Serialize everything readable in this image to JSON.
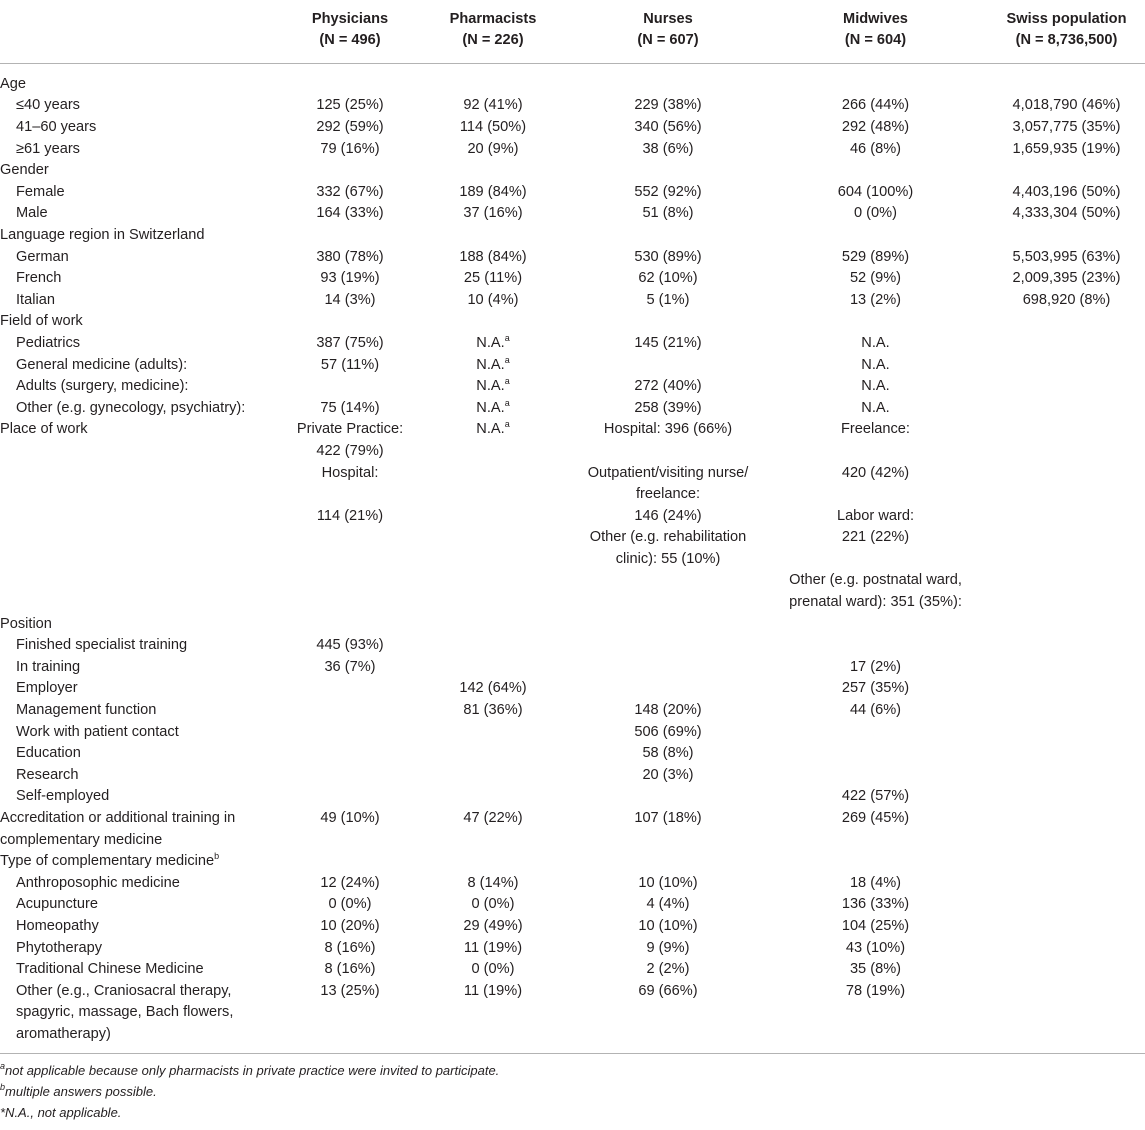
{
  "columns": [
    {
      "name": "Physicians",
      "n": "(N = 496)"
    },
    {
      "name": "Pharmacists",
      "n": "(N = 226)"
    },
    {
      "name": "Nurses",
      "n": "(N = 607)"
    },
    {
      "name": "Midwives",
      "n": "(N = 604)"
    },
    {
      "name": "Swiss population",
      "n": "(N = 8,736,500)"
    }
  ],
  "rows": [
    {
      "type": "group",
      "label": [
        "Age"
      ],
      "cells": [
        [],
        [],
        [],
        [],
        []
      ]
    },
    {
      "type": "item",
      "label": [
        "≤40 years"
      ],
      "cells": [
        [
          "125 (25%)"
        ],
        [
          "92 (41%)"
        ],
        [
          "229 (38%)"
        ],
        [
          "266 (44%)"
        ],
        [
          "4,018,790 (46%)"
        ]
      ]
    },
    {
      "type": "item",
      "label": [
        "41–60 years"
      ],
      "cells": [
        [
          "292 (59%)"
        ],
        [
          "114 (50%)"
        ],
        [
          "340 (56%)"
        ],
        [
          "292 (48%)"
        ],
        [
          "3,057,775 (35%)"
        ]
      ]
    },
    {
      "type": "item",
      "label": [
        "≥61 years"
      ],
      "cells": [
        [
          "79 (16%)"
        ],
        [
          "20 (9%)"
        ],
        [
          "38 (6%)"
        ],
        [
          "46 (8%)"
        ],
        [
          "1,659,935 (19%)"
        ]
      ]
    },
    {
      "type": "group",
      "label": [
        "Gender"
      ],
      "cells": [
        [],
        [],
        [],
        [],
        []
      ]
    },
    {
      "type": "item",
      "label": [
        "Female"
      ],
      "cells": [
        [
          "332 (67%)"
        ],
        [
          "189 (84%)"
        ],
        [
          "552 (92%)"
        ],
        [
          "604 (100%)"
        ],
        [
          "4,403,196 (50%)"
        ]
      ]
    },
    {
      "type": "item",
      "label": [
        "Male"
      ],
      "cells": [
        [
          "164 (33%)"
        ],
        [
          "37 (16%)"
        ],
        [
          "51 (8%)"
        ],
        [
          "0 (0%)"
        ],
        [
          "4,333,304 (50%)"
        ]
      ]
    },
    {
      "type": "group",
      "label": [
        "Language region in Switzerland"
      ],
      "cells": [
        [],
        [],
        [],
        [],
        []
      ]
    },
    {
      "type": "item",
      "label": [
        "German"
      ],
      "cells": [
        [
          "380 (78%)"
        ],
        [
          "188 (84%)"
        ],
        [
          "530 (89%)"
        ],
        [
          "529 (89%)"
        ],
        [
          "5,503,995 (63%)"
        ]
      ]
    },
    {
      "type": "item",
      "label": [
        "French"
      ],
      "cells": [
        [
          "93 (19%)"
        ],
        [
          "25 (11%)"
        ],
        [
          "62 (10%)"
        ],
        [
          "52 (9%)"
        ],
        [
          "2,009,395 (23%)"
        ]
      ]
    },
    {
      "type": "item",
      "label": [
        "Italian"
      ],
      "cells": [
        [
          "14 (3%)"
        ],
        [
          "10 (4%)"
        ],
        [
          "5 (1%)"
        ],
        [
          "13 (2%)"
        ],
        [
          "698,920 (8%)"
        ]
      ]
    },
    {
      "type": "group",
      "label": [
        "Field of work"
      ],
      "cells": [
        [],
        [],
        [],
        [],
        []
      ]
    },
    {
      "type": "item",
      "label": [
        "Pediatrics"
      ],
      "cells": [
        [
          "387 (75%)"
        ],
        [
          "N.A.|a"
        ],
        [
          "145 (21%)"
        ],
        [
          "N.A."
        ],
        []
      ]
    },
    {
      "type": "item",
      "label": [
        "General medicine (adults):"
      ],
      "cells": [
        [
          "57 (11%)"
        ],
        [
          "N.A.|a"
        ],
        [],
        [
          "N.A."
        ],
        []
      ]
    },
    {
      "type": "item",
      "label": [
        "Adults (surgery, medicine):"
      ],
      "cells": [
        [],
        [
          "N.A.|a"
        ],
        [
          "272 (40%)"
        ],
        [
          "N.A."
        ],
        []
      ]
    },
    {
      "type": "item",
      "label": [
        "Other (e.g. gynecology, psychiatry):"
      ],
      "cells": [
        [
          "75 (14%)"
        ],
        [
          "N.A.|a"
        ],
        [
          "258 (39%)"
        ],
        [
          "N.A."
        ],
        []
      ]
    },
    {
      "type": "group",
      "label": [
        "Place of work"
      ],
      "cells": [
        [
          "Private Practice:",
          "422 (79%)",
          "Hospital:",
          "",
          "114 (21%)"
        ],
        [
          "N.A.|a"
        ],
        [
          "Hospital: 396 (66%)",
          "",
          "Outpatient/visiting nurse/",
          "freelance:",
          "146 (24%)",
          "Other (e.g. rehabilitation",
          "clinic): 55 (10%)"
        ],
        [
          "Freelance:",
          "",
          "420 (42%)",
          "",
          "Labor ward:",
          "221 (22%)",
          "",
          "Other (e.g. postnatal ward,",
          "prenatal ward): 351 (35%):"
        ],
        []
      ]
    },
    {
      "type": "group",
      "label": [
        "Position"
      ],
      "cells": [
        [],
        [],
        [],
        [],
        []
      ]
    },
    {
      "type": "item",
      "label": [
        "Finished specialist training"
      ],
      "cells": [
        [
          "445 (93%)"
        ],
        [],
        [],
        [],
        []
      ]
    },
    {
      "type": "item",
      "label": [
        "In training"
      ],
      "cells": [
        [
          "36 (7%)"
        ],
        [],
        [],
        [
          "17 (2%)"
        ],
        []
      ]
    },
    {
      "type": "item",
      "label": [
        "Employer"
      ],
      "cells": [
        [],
        [
          "142 (64%)"
        ],
        [],
        [
          "257 (35%)"
        ],
        []
      ]
    },
    {
      "type": "item",
      "label": [
        "Management function"
      ],
      "cells": [
        [],
        [
          "81 (36%)"
        ],
        [
          "148 (20%)"
        ],
        [
          "44 (6%)"
        ],
        []
      ]
    },
    {
      "type": "item",
      "label": [
        "Work with patient contact"
      ],
      "cells": [
        [],
        [],
        [
          "506 (69%)"
        ],
        [],
        []
      ]
    },
    {
      "type": "item",
      "label": [
        "Education"
      ],
      "cells": [
        [],
        [],
        [
          "58 (8%)"
        ],
        [],
        []
      ]
    },
    {
      "type": "item",
      "label": [
        "Research"
      ],
      "cells": [
        [],
        [],
        [
          "20 (3%)"
        ],
        [],
        []
      ]
    },
    {
      "type": "item",
      "label": [
        "Self-employed"
      ],
      "cells": [
        [],
        [],
        [],
        [
          "422 (57%)"
        ],
        []
      ]
    },
    {
      "type": "group",
      "label": [
        "Accreditation or additional training in",
        "complementary medicine"
      ],
      "cells": [
        [
          "49 (10%)"
        ],
        [
          "47 (22%)"
        ],
        [
          "107 (18%)"
        ],
        [
          "269 (45%)"
        ],
        []
      ]
    },
    {
      "type": "group",
      "label": [
        "Type of complementary medicine|b"
      ],
      "cells": [
        [],
        [],
        [],
        [],
        []
      ]
    },
    {
      "type": "item",
      "label": [
        "Anthroposophic medicine"
      ],
      "cells": [
        [
          "12 (24%)"
        ],
        [
          "8 (14%)"
        ],
        [
          "10 (10%)"
        ],
        [
          "18 (4%)"
        ],
        []
      ]
    },
    {
      "type": "item",
      "label": [
        "Acupuncture"
      ],
      "cells": [
        [
          "0 (0%)"
        ],
        [
          "0 (0%)"
        ],
        [
          "4 (4%)"
        ],
        [
          "136 (33%)"
        ],
        []
      ]
    },
    {
      "type": "item",
      "label": [
        "Homeopathy"
      ],
      "cells": [
        [
          "10 (20%)"
        ],
        [
          "29 (49%)"
        ],
        [
          "10 (10%)"
        ],
        [
          "104 (25%)"
        ],
        []
      ]
    },
    {
      "type": "item",
      "label": [
        "Phytotherapy"
      ],
      "cells": [
        [
          "8 (16%)"
        ],
        [
          "11 (19%)"
        ],
        [
          "9 (9%)"
        ],
        [
          "43 (10%)"
        ],
        []
      ]
    },
    {
      "type": "item",
      "label": [
        "Traditional Chinese Medicine"
      ],
      "cells": [
        [
          "8 (16%)"
        ],
        [
          "0 (0%)"
        ],
        [
          "2 (2%)"
        ],
        [
          "35 (8%)"
        ],
        []
      ]
    },
    {
      "type": "item",
      "label": [
        "Other (e.g., Craniosacral therapy,",
        "spagyric, massage, Bach flowers,",
        "aromatherapy)"
      ],
      "cells": [
        [
          "13 (25%)"
        ],
        [
          "11 (19%)"
        ],
        [
          "69 (66%)"
        ],
        [
          "78 (19%)"
        ],
        []
      ]
    }
  ],
  "footnotes": [
    {
      "mark": "a",
      "text": "not applicable because only pharmacists in private practice were invited to participate."
    },
    {
      "mark": "b",
      "text": "multiple answers possible."
    },
    {
      "mark": "",
      "text": "*N.A., not applicable."
    }
  ]
}
